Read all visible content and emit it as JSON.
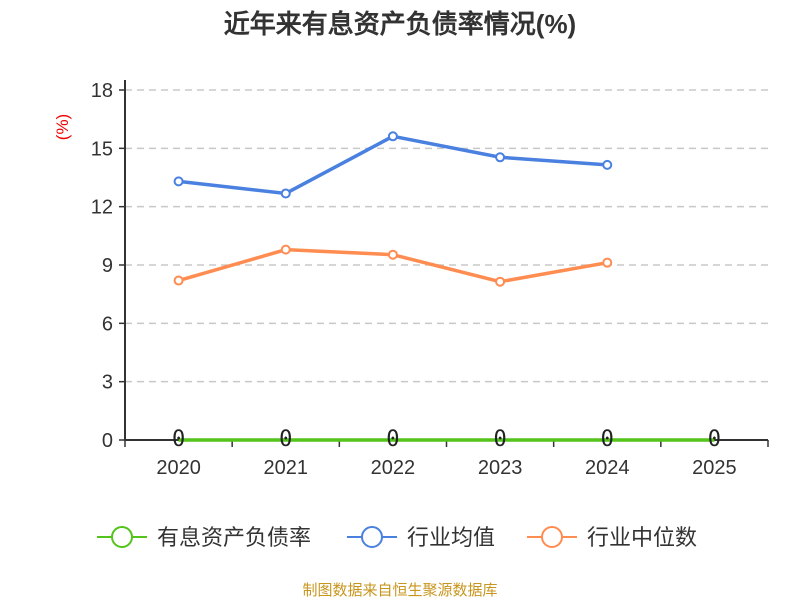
{
  "chart_data": {
    "type": "line",
    "title": "近年来有息资产负债率情况(%)",
    "ylabel": "(%)",
    "xlabel": "",
    "ylim": [
      0,
      18
    ],
    "yticks": [
      0,
      3,
      6,
      9,
      12,
      15,
      18
    ],
    "categories": [
      "2020",
      "2021",
      "2022",
      "2023",
      "2024",
      "2025"
    ],
    "grid": true,
    "legend_position": "bottom",
    "series": [
      {
        "name": "有息资产负债率",
        "color": "#52c41a",
        "values": [
          0,
          0,
          0,
          0,
          0,
          0
        ],
        "labels": [
          "0",
          "0",
          "0",
          "0",
          "0",
          "0"
        ]
      },
      {
        "name": "行业均值",
        "color": "#4a80e0",
        "values": [
          13.3,
          12.68,
          15.62,
          14.54,
          14.15,
          null
        ]
      },
      {
        "name": "行业中位数",
        "color": "#ff8c50",
        "values": [
          8.2,
          9.79,
          9.53,
          8.14,
          9.12,
          null
        ]
      }
    ],
    "source": "制图数据来自恒生聚源数据库"
  }
}
